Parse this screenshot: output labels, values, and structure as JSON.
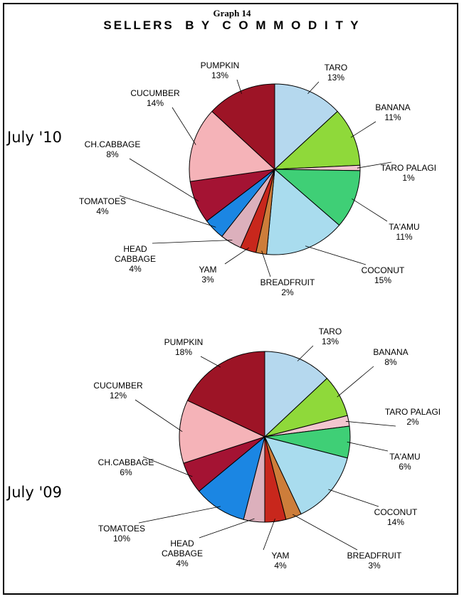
{
  "graph_number": "Graph 14",
  "title": "SELLERS  B Y  C O M M O D I T Y",
  "colors": {
    "taro": "#b5d8ee",
    "banana": "#8fd93a",
    "taro_palagi": "#f2c6cf",
    "ta_amu": "#3fcf76",
    "coconut": "#a9dcee",
    "breadfruit": "#cd7d3a",
    "yam": "#c8271c",
    "head_cabbage": "#dcb0bc",
    "tomatoes": "#1b86e3",
    "ch_cabbage": "#a41333",
    "cucumber": "#f5b3b8",
    "pumpkin": "#9d1426"
  },
  "chart_data": [
    {
      "type": "pie",
      "label": "July '10",
      "slices": [
        {
          "name": "TARO",
          "value": 13,
          "label": "13%"
        },
        {
          "name": "BANANA",
          "value": 11,
          "label": "11%"
        },
        {
          "name": "TARO PALAGI",
          "value": 1,
          "label": "1%"
        },
        {
          "name": "TA'AMU",
          "value": 11,
          "label": "11%"
        },
        {
          "name": "COCONUT",
          "value": 15,
          "label": "15%"
        },
        {
          "name": "BREADFRUIT",
          "value": 2,
          "label": "2%"
        },
        {
          "name": "YAM",
          "value": 3,
          "label": "3%"
        },
        {
          "name": "HEAD CABBAGE",
          "value": 4,
          "label": "4%"
        },
        {
          "name": "TOMATOES",
          "value": 4,
          "label": "4%"
        },
        {
          "name": "CH.CABBAGE",
          "value": 8,
          "label": "8%"
        },
        {
          "name": "CUCUMBER",
          "value": 14,
          "label": "14%"
        },
        {
          "name": "PUMPKIN",
          "value": 13,
          "label": "13%"
        }
      ]
    },
    {
      "type": "pie",
      "label": "July '09",
      "slices": [
        {
          "name": "TARO",
          "value": 13,
          "label": "13%"
        },
        {
          "name": "BANANA",
          "value": 8,
          "label": "8%"
        },
        {
          "name": "TARO PALAGI",
          "value": 2,
          "label": "2%"
        },
        {
          "name": "TA'AMU",
          "value": 6,
          "label": "6%"
        },
        {
          "name": "COCONUT",
          "value": 14,
          "label": "14%"
        },
        {
          "name": "BREADFRUIT",
          "value": 3,
          "label": "3%"
        },
        {
          "name": "YAM",
          "value": 4,
          "label": "4%"
        },
        {
          "name": "HEAD CABBAGE",
          "value": 4,
          "label": "4%"
        },
        {
          "name": "TOMATOES",
          "value": 10,
          "label": "10%"
        },
        {
          "name": "CH.CABBAGE",
          "value": 6,
          "label": "6%"
        },
        {
          "name": "CUCUMBER",
          "value": 12,
          "label": "12%"
        },
        {
          "name": "PUMPKIN",
          "value": 18,
          "label": "18%"
        }
      ]
    }
  ]
}
